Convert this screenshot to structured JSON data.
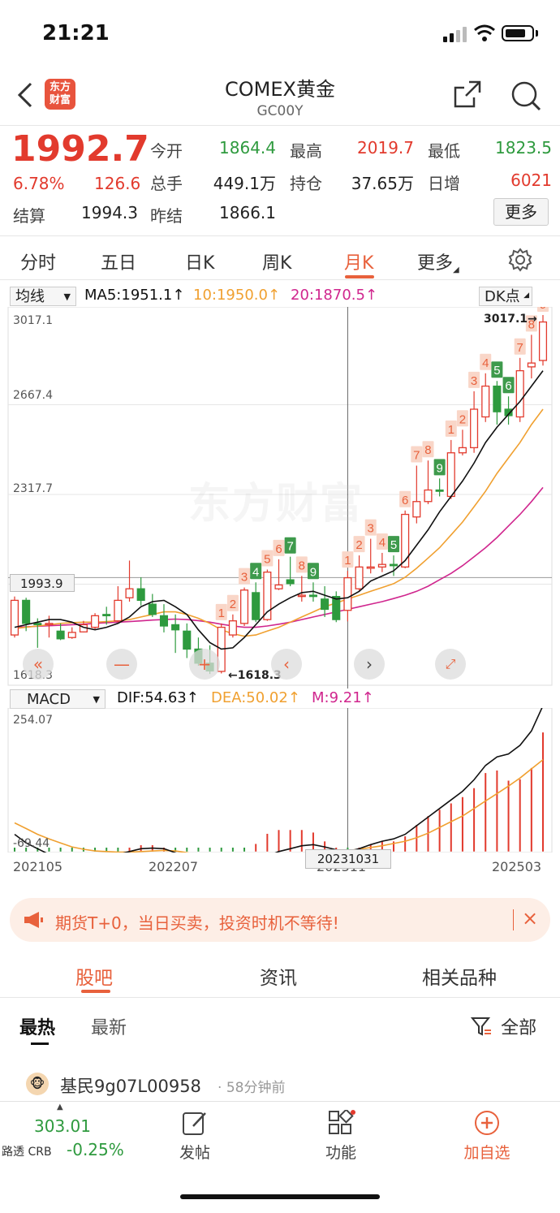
{
  "status": {
    "time": "21:21"
  },
  "header": {
    "title": "COMEX黄金",
    "subtitle": "GC00Y",
    "logo_text": "东方财富"
  },
  "quote": {
    "price": "1992.7",
    "change_pct": "6.78%",
    "change": "126.6",
    "fields": [
      {
        "label": "今开",
        "value": "1864.4",
        "color": "green"
      },
      {
        "label": "最高",
        "value": "2019.7",
        "color": "red"
      },
      {
        "label": "最低",
        "value": "1823.5",
        "color": "green"
      },
      {
        "label": "总手",
        "value": "449.1万",
        "color": "dark"
      },
      {
        "label": "持仓",
        "value": "37.65万",
        "color": "dark"
      },
      {
        "label": "日增",
        "value": "6021",
        "color": "red"
      },
      {
        "label": "结算",
        "value": "1994.3",
        "color": "dark"
      },
      {
        "label": "昨结",
        "value": "1866.1",
        "color": "dark"
      }
    ],
    "more_label": "更多"
  },
  "tabs": [
    "分时",
    "五日",
    "日K",
    "周K",
    "月K",
    "更多"
  ],
  "active_tab": "月K",
  "chart_controls": {
    "indicator_select": "均线",
    "ma5": "MA5:1951.1↑",
    "ma10": "10:1950.0↑",
    "ma20": "20:1870.5↑",
    "dk_label": "DK点",
    "macd_select": "MACD",
    "dif": "DIF:54.63↑",
    "dea": "DEA:50.02↑",
    "m": "M:9.21↑"
  },
  "colors": {
    "up": "#e23a2d",
    "down": "#2e9a3e",
    "ma5": "#111111",
    "ma10": "#f0a030",
    "ma20": "#d0268e",
    "accent": "#e8613c"
  },
  "chart_data": {
    "type": "candlestick",
    "price_axis_ticks": [
      "3017.1",
      "2667.4",
      "2317.7",
      "1618.3"
    ],
    "crosshair_price": "1993.9",
    "crosshair_date": "20231031",
    "max_marker": "3017.1",
    "min_marker": "1618.3",
    "ylim": [
      1618.3,
      3017.1
    ],
    "macd_ticks": [
      "254.07",
      "-69.44"
    ],
    "x_tick_labels": [
      "202105",
      "202207",
      "202311",
      "202503"
    ],
    "watermark": "东方财富",
    "candles": [
      {
        "o": 1770,
        "c": 1905,
        "h": 1920,
        "l": 1760,
        "n": ""
      },
      {
        "o": 1905,
        "c": 1815,
        "h": 1915,
        "l": 1785,
        "n": ""
      },
      {
        "o": 1815,
        "c": 1812,
        "h": 1835,
        "l": 1720,
        "n": ""
      },
      {
        "o": 1812,
        "c": 1815,
        "h": 1845,
        "l": 1760,
        "n": ""
      },
      {
        "o": 1785,
        "c": 1755,
        "h": 1815,
        "l": 1750,
        "n": ""
      },
      {
        "o": 1760,
        "c": 1780,
        "h": 1800,
        "l": 1755,
        "n": ""
      },
      {
        "o": 1782,
        "c": 1810,
        "h": 1825,
        "l": 1780,
        "n": ""
      },
      {
        "o": 1800,
        "c": 1845,
        "h": 1855,
        "l": 1790,
        "n": ""
      },
      {
        "o": 1850,
        "c": 1845,
        "h": 1880,
        "l": 1810,
        "n": ""
      },
      {
        "o": 1825,
        "c": 1905,
        "h": 1960,
        "l": 1820,
        "n": ""
      },
      {
        "o": 1915,
        "c": 1950,
        "h": 2060,
        "l": 1900,
        "n": ""
      },
      {
        "o": 1950,
        "c": 1905,
        "h": 1995,
        "l": 1885,
        "n": ""
      },
      {
        "o": 1890,
        "c": 1850,
        "h": 1930,
        "l": 1840,
        "n": ""
      },
      {
        "o": 1845,
        "c": 1805,
        "h": 1890,
        "l": 1780,
        "n": ""
      },
      {
        "o": 1810,
        "c": 1790,
        "h": 1850,
        "l": 1700,
        "n": ""
      },
      {
        "o": 1785,
        "c": 1715,
        "h": 1815,
        "l": 1680,
        "n": ""
      },
      {
        "o": 1715,
        "c": 1660,
        "h": 1760,
        "l": 1650,
        "n": ""
      },
      {
        "o": 1660,
        "c": 1630,
        "h": 1730,
        "l": 1618,
        "n": ""
      },
      {
        "o": 1628,
        "c": 1800,
        "h": 1815,
        "l": 1620,
        "n": "1"
      },
      {
        "o": 1770,
        "c": 1825,
        "h": 1850,
        "l": 1760,
        "n": "2"
      },
      {
        "o": 1815,
        "c": 1945,
        "h": 1955,
        "l": 1805,
        "n": "3"
      },
      {
        "o": 1935,
        "c": 1830,
        "h": 1975,
        "l": 1820,
        "n": "4"
      },
      {
        "o": 1830,
        "c": 2015,
        "h": 2025,
        "l": 1825,
        "n": "5"
      },
      {
        "o": 1950,
        "c": 1965,
        "h": 2065,
        "l": 1945,
        "n": "6"
      },
      {
        "o": 1985,
        "c": 1970,
        "h": 2075,
        "l": 1960,
        "n": "7"
      },
      {
        "o": 1920,
        "c": 1925,
        "h": 2000,
        "l": 1900,
        "n": "8"
      },
      {
        "o": 1925,
        "c": 1920,
        "h": 1975,
        "l": 1900,
        "n": "9"
      },
      {
        "o": 1910,
        "c": 1870,
        "h": 1960,
        "l": 1840,
        "n": ""
      },
      {
        "o": 1920,
        "c": 1830,
        "h": 1940,
        "l": 1820,
        "n": ""
      },
      {
        "o": 1866,
        "c": 1993,
        "h": 2020,
        "l": 1823,
        "n": "1"
      },
      {
        "o": 1950,
        "c": 2035,
        "h": 2080,
        "l": 1940,
        "n": "2"
      },
      {
        "o": 2030,
        "c": 2035,
        "h": 2145,
        "l": 2010,
        "n": "3"
      },
      {
        "o": 2035,
        "c": 2045,
        "h": 2090,
        "l": 2015,
        "n": "4"
      },
      {
        "o": 2045,
        "c": 2040,
        "h": 2080,
        "l": 2000,
        "n": "5"
      },
      {
        "o": 2035,
        "c": 2240,
        "h": 2255,
        "l": 2030,
        "n": "6"
      },
      {
        "o": 2230,
        "c": 2290,
        "h": 2430,
        "l": 2205,
        "n": "7"
      },
      {
        "o": 2290,
        "c": 2335,
        "h": 2450,
        "l": 2280,
        "n": "8"
      },
      {
        "o": 2335,
        "c": 2330,
        "h": 2380,
        "l": 2310,
        "n": "9"
      },
      {
        "o": 2310,
        "c": 2480,
        "h": 2530,
        "l": 2300,
        "n": "1"
      },
      {
        "o": 2480,
        "c": 2500,
        "h": 2570,
        "l": 2470,
        "n": "2"
      },
      {
        "o": 2500,
        "c": 2650,
        "h": 2720,
        "l": 2480,
        "n": "3"
      },
      {
        "o": 2620,
        "c": 2740,
        "h": 2790,
        "l": 2600,
        "n": "4"
      },
      {
        "o": 2740,
        "c": 2640,
        "h": 2760,
        "l": 2590,
        "n": "5"
      },
      {
        "o": 2650,
        "c": 2625,
        "h": 2700,
        "l": 2590,
        "n": "6"
      },
      {
        "o": 2620,
        "c": 2800,
        "h": 2850,
        "l": 2600,
        "n": "7"
      },
      {
        "o": 2815,
        "c": 2830,
        "h": 2940,
        "l": 2770,
        "n": "8"
      },
      {
        "o": 2840,
        "c": 2990,
        "h": 3017,
        "l": 2820,
        "n": "9"
      }
    ],
    "ma5": [
      1800,
      1810,
      1820,
      1830,
      1830,
      1820,
      1800,
      1790,
      1800,
      1815,
      1840,
      1880,
      1900,
      1905,
      1880,
      1850,
      1790,
      1740,
      1715,
      1720,
      1760,
      1810,
      1860,
      1890,
      1915,
      1935,
      1940,
      1925,
      1910,
      1915,
      1940,
      1980,
      2000,
      2020,
      2060,
      2120,
      2180,
      2250,
      2310,
      2370,
      2440,
      2520,
      2580,
      2630,
      2680,
      2740,
      2800
    ],
    "ma10": [
      1795,
      1800,
      1805,
      1810,
      1815,
      1818,
      1820,
      1820,
      1822,
      1825,
      1830,
      1840,
      1850,
      1860,
      1860,
      1850,
      1835,
      1815,
      1790,
      1775,
      1765,
      1770,
      1785,
      1800,
      1820,
      1840,
      1860,
      1880,
      1895,
      1910,
      1925,
      1940,
      1955,
      1970,
      1995,
      2030,
      2070,
      2110,
      2160,
      2210,
      2270,
      2330,
      2400,
      2460,
      2520,
      2590,
      2650
    ],
    "ma20": [
      1800,
      1802,
      1804,
      1806,
      1808,
      1810,
      1812,
      1815,
      1818,
      1820,
      1822,
      1825,
      1828,
      1830,
      1832,
      1830,
      1826,
      1820,
      1812,
      1805,
      1800,
      1800,
      1805,
      1812,
      1820,
      1830,
      1840,
      1850,
      1860,
      1870,
      1880,
      1890,
      1900,
      1912,
      1925,
      1940,
      1960,
      1985,
      2010,
      2040,
      2075,
      2110,
      2150,
      2195,
      2240,
      2290,
      2345
    ],
    "dif": [
      30,
      15,
      5,
      -5,
      -10,
      -12,
      -12,
      -10,
      -8,
      -5,
      0,
      5,
      6,
      5,
      -2,
      -10,
      -20,
      -35,
      -45,
      -40,
      -35,
      -20,
      -8,
      0,
      5,
      10,
      12,
      8,
      3,
      0,
      5,
      12,
      18,
      22,
      30,
      45,
      60,
      75,
      90,
      105,
      125,
      150,
      165,
      170,
      185,
      210,
      254
    ],
    "dea": [
      50,
      40,
      30,
      22,
      15,
      8,
      4,
      1,
      0,
      -1,
      -1,
      0,
      1,
      2,
      1,
      -2,
      -6,
      -12,
      -20,
      -25,
      -28,
      -26,
      -22,
      -17,
      -12,
      -7,
      -3,
      0,
      1,
      2,
      4,
      7,
      10,
      14,
      18,
      24,
      32,
      42,
      52,
      62,
      75,
      88,
      101,
      114,
      128,
      144,
      160
    ],
    "macd_bar": [
      -40,
      -50,
      -50,
      -54,
      -50,
      -40,
      -32,
      -22,
      -16,
      -8,
      2,
      10,
      10,
      6,
      -6,
      -16,
      -28,
      -46,
      -50,
      -30,
      -14,
      12,
      28,
      34,
      34,
      34,
      30,
      16,
      4,
      -4,
      2,
      10,
      16,
      16,
      24,
      42,
      56,
      66,
      76,
      86,
      100,
      124,
      128,
      112,
      114,
      132,
      188
    ]
  },
  "promo": {
    "text": "期货T+0，当日买卖，投资时机不等待!"
  },
  "forum": {
    "tabs": [
      "股吧",
      "资讯",
      "相关品种"
    ],
    "sorts": [
      "最热",
      "最新"
    ],
    "filter_label": "全部",
    "post": {
      "user": "基民9g07L00958",
      "time": "58分钟前"
    }
  },
  "bottom_bar": {
    "index_value": "303.01",
    "index_name": "路透 CRB",
    "index_change": "-0.25%",
    "items": [
      "发帖",
      "功能",
      "加自选"
    ]
  }
}
